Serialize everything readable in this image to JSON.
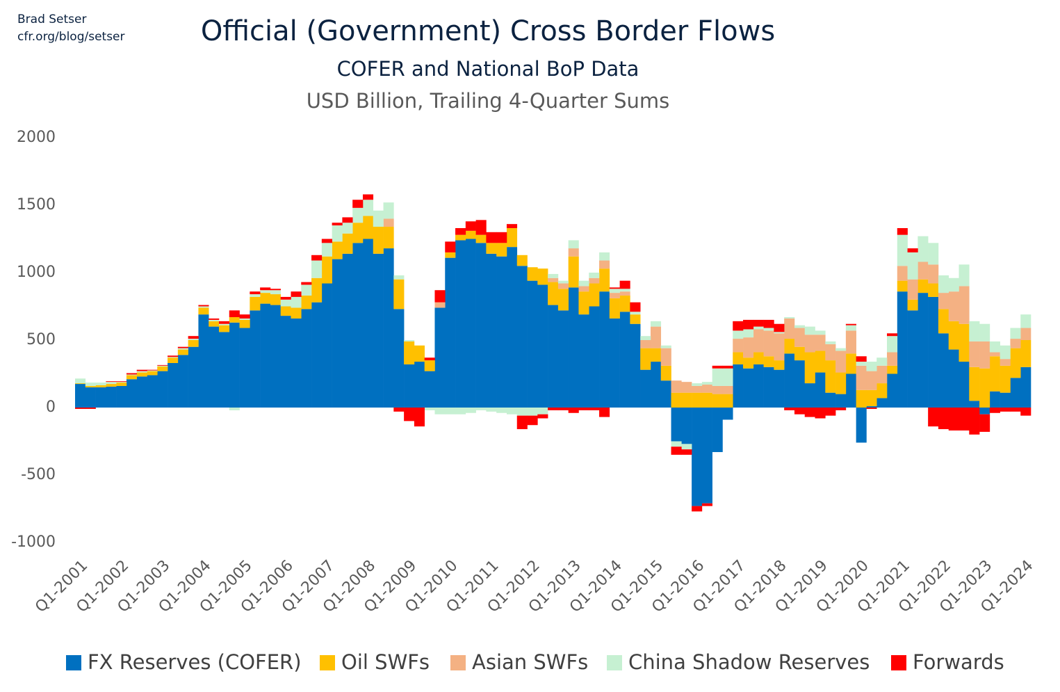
{
  "chart_data": {
    "type": "stacked_bar",
    "author": "Brad Setser",
    "author_url": "cfr.org/blog/setser",
    "title": "Official (Government) Cross Border Flows",
    "subtitle": "COFER and National BoP Data",
    "subtitle_2": "USD Billion, Trailing 4-Quarter Sums",
    "categories": [
      "Q1-2001",
      null,
      null,
      null,
      "Q1-2002",
      null,
      null,
      null,
      "Q1-2003",
      null,
      null,
      null,
      "Q1-2004",
      null,
      null,
      null,
      "Q1-2005",
      null,
      null,
      null,
      "Q1-2006",
      null,
      null,
      null,
      "Q1-2007",
      null,
      null,
      null,
      "Q1-2008",
      null,
      null,
      null,
      "Q1-2009",
      null,
      null,
      null,
      "Q1-2010",
      null,
      null,
      null,
      "Q1-2011",
      null,
      null,
      null,
      "Q1-2012",
      null,
      null,
      null,
      "Q1-2013",
      null,
      null,
      null,
      "Q1-2014",
      null,
      null,
      null,
      "Q1-2015",
      null,
      null,
      null,
      "Q1-2016",
      null,
      null,
      null,
      "Q1-2017",
      null,
      null,
      null,
      "Q1-2018",
      null,
      null,
      null,
      "Q1-2019",
      null,
      null,
      null,
      "Q1-2020",
      null,
      null,
      null,
      "Q1-2021",
      null,
      null,
      null,
      "Q1-2022",
      null,
      null,
      null,
      "Q1-2023",
      null,
      null,
      null,
      "Q1-2024"
    ],
    "series": [
      {
        "name": "FX Reserves (COFER)",
        "color": "#0070c0",
        "values": [
          175,
          150,
          150,
          155,
          160,
          210,
          230,
          240,
          270,
          330,
          390,
          450,
          690,
          600,
          560,
          630,
          590,
          720,
          770,
          760,
          680,
          660,
          730,
          780,
          920,
          1100,
          1140,
          1220,
          1250,
          1140,
          1180,
          730,
          320,
          340,
          270,
          740,
          1110,
          1240,
          1250,
          1220,
          1140,
          1120,
          1190,
          1050,
          940,
          910,
          760,
          720,
          890,
          690,
          750,
          860,
          660,
          710,
          620,
          280,
          340,
          200,
          -250,
          -270,
          -730,
          -710,
          -330,
          -90,
          320,
          290,
          320,
          300,
          280,
          400,
          350,
          180,
          260,
          110,
          100,
          250,
          -260,
          10,
          70,
          250,
          860,
          720,
          850,
          820,
          550,
          430,
          340,
          50,
          -50,
          120,
          110,
          220,
          300
        ]
      },
      {
        "name": "Oil SWFs",
        "color": "#ffc000",
        "values": [
          5,
          10,
          15,
          20,
          25,
          30,
          30,
          30,
          35,
          40,
          40,
          50,
          50,
          40,
          50,
          40,
          60,
          100,
          80,
          80,
          70,
          80,
          100,
          180,
          200,
          130,
          150,
          150,
          170,
          200,
          160,
          220,
          170,
          120,
          80,
          0,
          40,
          40,
          60,
          60,
          80,
          100,
          140,
          80,
          100,
          120,
          170,
          160,
          230,
          170,
          170,
          170,
          150,
          120,
          70,
          160,
          100,
          110,
          110,
          110,
          110,
          110,
          100,
          100,
          90,
          80,
          90,
          80,
          70,
          110,
          100,
          230,
          160,
          240,
          160,
          150,
          130,
          120,
          110,
          60,
          80,
          80,
          100,
          100,
          180,
          210,
          280,
          250,
          290,
          260,
          200,
          220,
          200
        ]
      },
      {
        "name": "Asian SWFs",
        "color": "#f4b183",
        "values": [
          0,
          0,
          0,
          0,
          0,
          0,
          0,
          0,
          0,
          0,
          0,
          0,
          0,
          0,
          0,
          0,
          0,
          0,
          0,
          0,
          0,
          0,
          0,
          0,
          0,
          0,
          0,
          0,
          0,
          0,
          60,
          0,
          0,
          0,
          0,
          40,
          0,
          0,
          0,
          0,
          0,
          0,
          0,
          0,
          0,
          0,
          30,
          40,
          60,
          40,
          40,
          60,
          40,
          30,
          0,
          60,
          160,
          130,
          90,
          80,
          50,
          60,
          60,
          60,
          100,
          150,
          170,
          190,
          200,
          150,
          140,
          130,
          120,
          120,
          160,
          170,
          180,
          140,
          130,
          100,
          110,
          150,
          130,
          140,
          120,
          220,
          280,
          190,
          200,
          30,
          50,
          70,
          90
        ]
      },
      {
        "name": "China Shadow Reserves",
        "color": "#c6f0d2",
        "values": [
          35,
          25,
          20,
          15,
          5,
          5,
          10,
          5,
          5,
          5,
          10,
          10,
          10,
          10,
          10,
          -20,
          10,
          20,
          20,
          30,
          50,
          80,
          80,
          130,
          100,
          120,
          80,
          110,
          120,
          120,
          120,
          30,
          10,
          0,
          -20,
          -50,
          -50,
          -50,
          -40,
          -20,
          -30,
          -40,
          -50,
          -60,
          -60,
          -50,
          30,
          20,
          60,
          40,
          40,
          60,
          30,
          20,
          20,
          30,
          40,
          20,
          -40,
          -40,
          20,
          20,
          130,
          130,
          60,
          60,
          20,
          20,
          10,
          10,
          20,
          60,
          30,
          20,
          20,
          40,
          30,
          70,
          60,
          120,
          230,
          200,
          190,
          160,
          130,
          100,
          160,
          150,
          130,
          80,
          100,
          80,
          100
        ]
      },
      {
        "name": "Forwards",
        "color": "#ff0000",
        "values": [
          -10,
          -10,
          0,
          5,
          5,
          10,
          10,
          5,
          5,
          10,
          10,
          20,
          10,
          10,
          20,
          50,
          30,
          20,
          20,
          10,
          20,
          40,
          20,
          40,
          30,
          20,
          40,
          60,
          40,
          0,
          0,
          -30,
          -100,
          -140,
          20,
          90,
          80,
          50,
          70,
          110,
          80,
          80,
          30,
          -100,
          -70,
          -30,
          -20,
          -20,
          -40,
          -20,
          -20,
          -70,
          10,
          60,
          70,
          0,
          0,
          0,
          -60,
          -40,
          -40,
          -20,
          20,
          20,
          70,
          70,
          50,
          60,
          60,
          -20,
          -50,
          -70,
          -80,
          -60,
          -20,
          10,
          40,
          -10,
          0,
          20,
          50,
          30,
          0,
          -140,
          -160,
          -170,
          -170,
          -200,
          -130,
          -40,
          -30,
          -30,
          -60
        ]
      }
    ],
    "ylim": [
      -1000,
      2000
    ],
    "yticks": [
      -1000,
      -500,
      0,
      500,
      1000,
      1500,
      2000
    ],
    "grid": false,
    "legend": "bottom"
  }
}
